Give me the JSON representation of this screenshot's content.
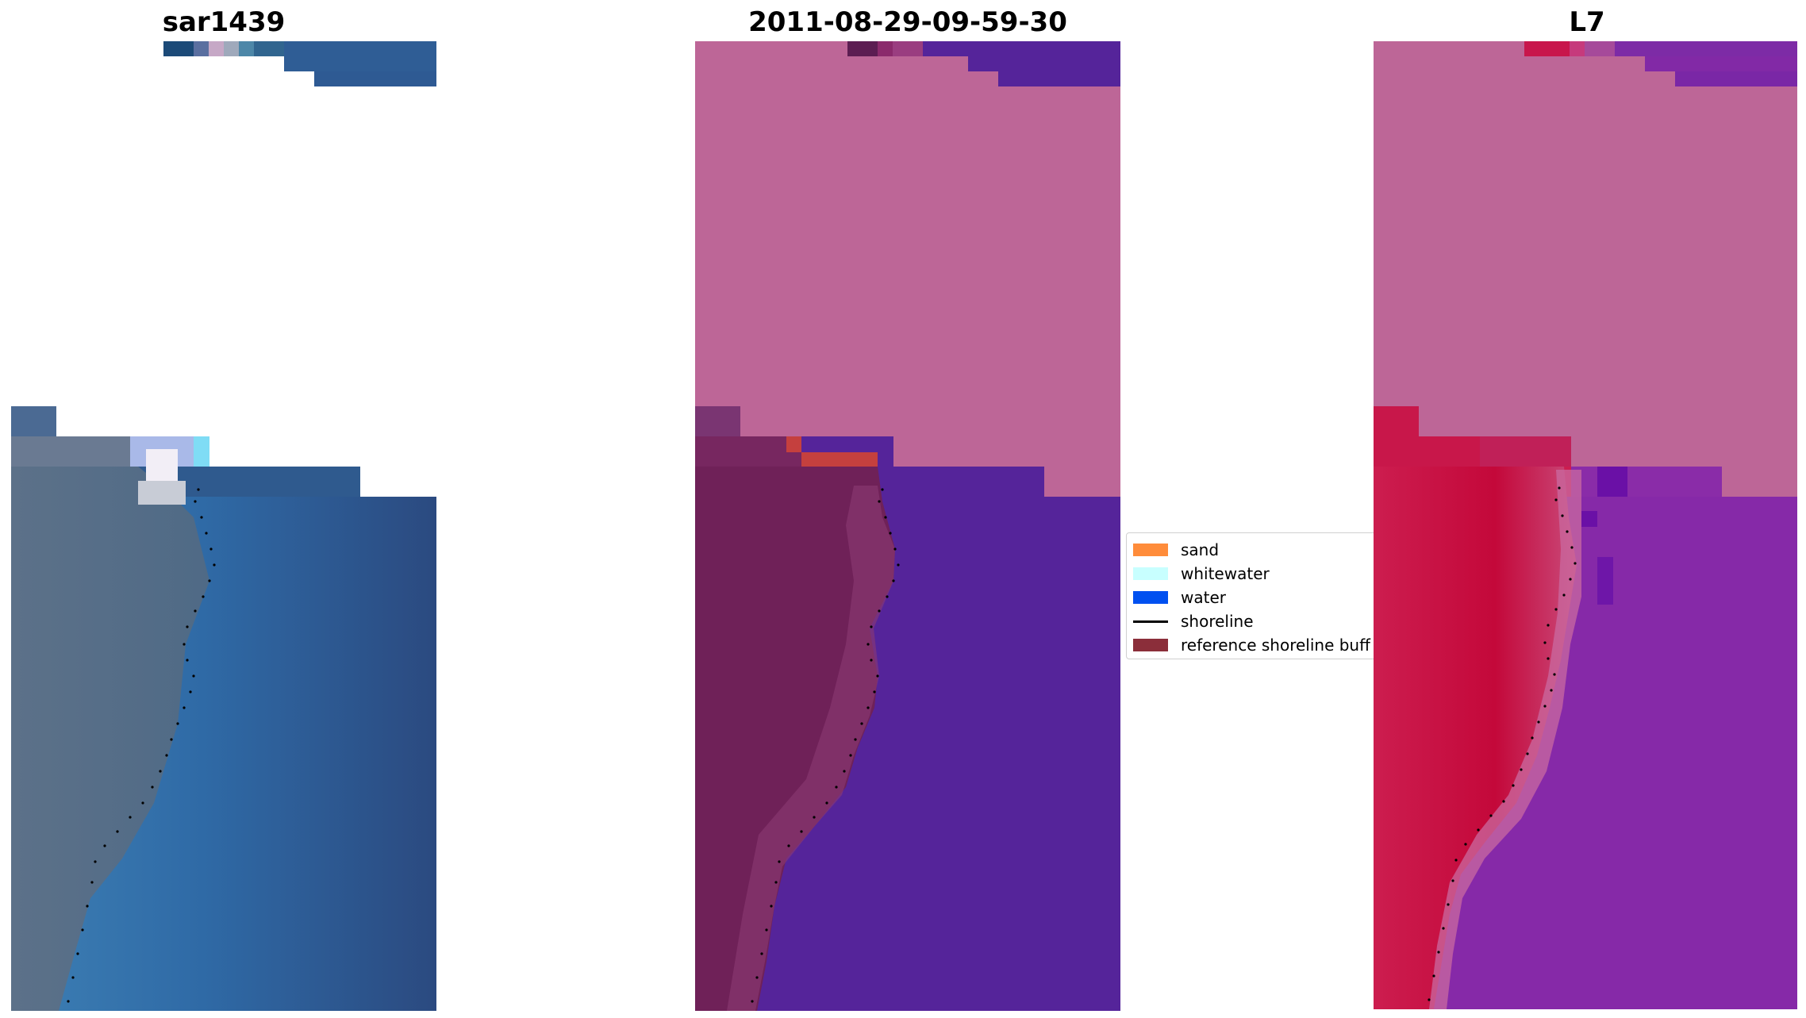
{
  "panels": [
    {
      "title": "sar1439"
    },
    {
      "title": "2011-08-29-09-59-30"
    },
    {
      "title": "L7"
    }
  ],
  "legend": {
    "items": [
      {
        "label": "sand",
        "color": "#ff8c3a",
        "kind": "patch"
      },
      {
        "label": "whitewater",
        "color": "#c8ffff",
        "kind": "patch"
      },
      {
        "label": "water",
        "color": "#0050f0",
        "kind": "patch"
      },
      {
        "label": "shoreline",
        "color": "#000000",
        "kind": "line"
      },
      {
        "label": "reference shoreline buff",
        "color": "#8b2e3a",
        "kind": "patch"
      }
    ]
  },
  "colors": {
    "rgb_water": "#2d4f86",
    "rgb_water_light": "#2f6aa6",
    "rgb_land": "#5a6f8a",
    "class_nodata": "#bd6697",
    "class_water": "#55249a",
    "class_land": "#6f2158",
    "class_sand": "#c5403e",
    "mndwi_land": "#c7174a",
    "mndwi_water": "#8629a8",
    "mndwi_nodata": "#bd6697"
  }
}
